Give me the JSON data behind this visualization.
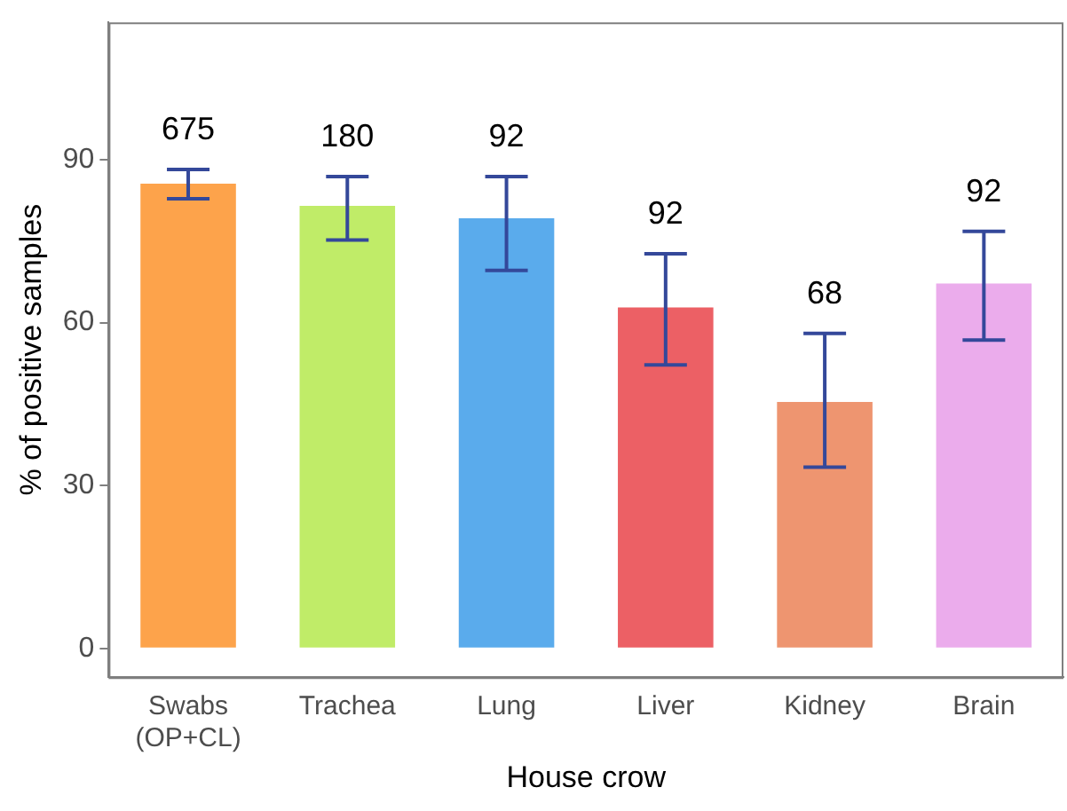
{
  "chart_data": {
    "type": "bar",
    "xlabel": "House crow",
    "ylabel": "% of positive samples",
    "categories": [
      "Swabs\n(OP+CL)",
      "Trachea",
      "Lung",
      "Liver",
      "Kidney",
      "Brain"
    ],
    "values": [
      85.6,
      81.5,
      79.2,
      62.8,
      45.4,
      67.2
    ],
    "colors": [
      "#fda34b",
      "#c0ec68",
      "#5aabec",
      "#ec6065",
      "#ee9570",
      "#ebacec"
    ],
    "errors": [
      [
        82.8,
        88.2
      ],
      [
        75.2,
        86.9
      ],
      [
        69.6,
        86.9
      ],
      [
        52.2,
        72.7
      ],
      [
        33.4,
        58.0
      ],
      [
        56.8,
        76.8
      ]
    ],
    "ylim": [
      -5.3,
      115.3
    ],
    "yticks": [
      0,
      30,
      60,
      90
    ],
    "grid": false,
    "legend": false,
    "annotations": [
      "675",
      "180",
      "92",
      "92",
      "68",
      "92"
    ]
  }
}
